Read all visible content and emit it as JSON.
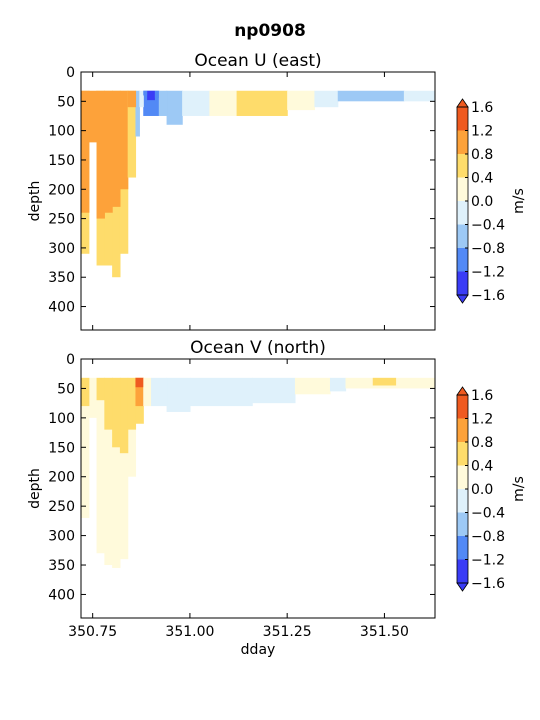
{
  "figure_title": "np0908",
  "levels": [
    -1.6,
    -1.2,
    -0.8,
    -0.4,
    0.0,
    0.4,
    0.8,
    1.2,
    1.6
  ],
  "level_labels": [
    "−1.6",
    "−1.2",
    "−0.8",
    "−0.4",
    "0.0",
    "0.4",
    "0.8",
    "1.2",
    "1.6"
  ],
  "level_colors": [
    "#3a3cf6",
    "#5289f5",
    "#9dc9f5",
    "#dff1fb",
    "#fffadb",
    "#fedc6b",
    "#fda23a",
    "#ef5a20"
  ],
  "colorbar_label": "m/s",
  "chart_data": [
    {
      "type": "heatmap",
      "title": "Ocean U (east)",
      "xlabel": "",
      "ylabel": "depth",
      "xlim": [
        350.72,
        351.63
      ],
      "ylim": [
        440,
        0
      ],
      "xticks": [
        350.75,
        351.0,
        351.25,
        351.5
      ],
      "xtick_labels": [
        "",
        "",
        "",
        ""
      ],
      "yticks": [
        0,
        50,
        100,
        150,
        200,
        250,
        300,
        350,
        400
      ],
      "ytick_labels": [
        "0",
        "50",
        "100",
        "150",
        "200",
        "250",
        "300",
        "350",
        "400"
      ],
      "cells": [
        {
          "x0": 350.72,
          "x1": 350.74,
          "y1": 240,
          "v": 0.9
        },
        {
          "x0": 350.72,
          "x1": 350.74,
          "y1": 310,
          "v": 0.6
        },
        {
          "x0": 350.74,
          "x1": 350.76,
          "y1": 120,
          "v": 0.9
        },
        {
          "x0": 350.76,
          "x1": 350.78,
          "y1": 250,
          "v": 0.9
        },
        {
          "x0": 350.76,
          "x1": 350.78,
          "y1": 330,
          "v": 0.6
        },
        {
          "x0": 350.78,
          "x1": 350.8,
          "y1": 240,
          "v": 0.9
        },
        {
          "x0": 350.78,
          "x1": 350.8,
          "y1": 330,
          "v": 0.6
        },
        {
          "x0": 350.8,
          "x1": 350.82,
          "y1": 230,
          "v": 0.9
        },
        {
          "x0": 350.8,
          "x1": 350.82,
          "y1": 350,
          "v": 0.6
        },
        {
          "x0": 350.82,
          "x1": 350.84,
          "y1": 200,
          "v": 0.9
        },
        {
          "x0": 350.82,
          "x1": 350.84,
          "y1": 310,
          "v": 0.6
        },
        {
          "x0": 350.84,
          "x1": 350.86,
          "y1": 60,
          "v": 0.9
        },
        {
          "x0": 350.84,
          "x1": 350.86,
          "y1": 180,
          "v": 0.6
        },
        {
          "x0": 350.86,
          "x1": 350.87,
          "y1": 110,
          "v": -0.6
        },
        {
          "x0": 350.87,
          "x1": 350.88,
          "y1": 60,
          "v": -0.2
        },
        {
          "x0": 350.88,
          "x1": 350.92,
          "y1": 75,
          "v": -1.0
        },
        {
          "x0": 350.92,
          "x1": 350.94,
          "y1": 75,
          "v": -0.6
        },
        {
          "x0": 350.94,
          "x1": 350.98,
          "y1": 90,
          "v": -0.6
        },
        {
          "x0": 350.98,
          "x1": 351.05,
          "y1": 75,
          "v": -0.2
        },
        {
          "x0": 351.05,
          "x1": 351.12,
          "y1": 75,
          "v": 0.2
        },
        {
          "x0": 351.12,
          "x1": 351.25,
          "y1": 75,
          "v": 0.6
        },
        {
          "x0": 351.25,
          "x1": 351.32,
          "y1": 65,
          "v": 0.2
        },
        {
          "x0": 351.32,
          "x1": 351.38,
          "y1": 60,
          "v": -0.2
        },
        {
          "x0": 351.38,
          "x1": 351.55,
          "y1": 50,
          "v": -0.6
        },
        {
          "x0": 351.55,
          "x1": 351.63,
          "y1": 50,
          "v": -0.2
        }
      ],
      "patches": [
        {
          "x0": 350.89,
          "x1": 350.91,
          "y0": 32,
          "y1": 48,
          "v": -1.4
        },
        {
          "x0": 350.88,
          "x1": 350.89,
          "y0": 32,
          "y1": 40,
          "v": -1.0
        },
        {
          "x0": 350.91,
          "x1": 350.92,
          "y0": 32,
          "y1": 44,
          "v": -1.0
        }
      ]
    },
    {
      "type": "heatmap",
      "title": "Ocean V (north)",
      "xlabel": "dday",
      "ylabel": "depth",
      "xlim": [
        350.72,
        351.63
      ],
      "ylim": [
        440,
        0
      ],
      "xticks": [
        350.75,
        351.0,
        351.25,
        351.5
      ],
      "xtick_labels": [
        "350.75",
        "351.00",
        "351.25",
        "351.50"
      ],
      "yticks": [
        0,
        50,
        100,
        150,
        200,
        250,
        300,
        350,
        400
      ],
      "ytick_labels": [
        "0",
        "50",
        "100",
        "150",
        "200",
        "250",
        "300",
        "350",
        "400"
      ],
      "cells": [
        {
          "x0": 350.72,
          "x1": 350.74,
          "y1": 80,
          "v": 0.6
        },
        {
          "x0": 350.72,
          "x1": 350.74,
          "y1": 270,
          "v": 0.2
        },
        {
          "x0": 350.74,
          "x1": 350.76,
          "y1": 100,
          "v": 0.2
        },
        {
          "x0": 350.76,
          "x1": 350.78,
          "y1": 70,
          "v": 0.6
        },
        {
          "x0": 350.76,
          "x1": 350.78,
          "y1": 330,
          "v": 0.2
        },
        {
          "x0": 350.78,
          "x1": 350.8,
          "y1": 120,
          "v": 0.6
        },
        {
          "x0": 350.78,
          "x1": 350.8,
          "y1": 350,
          "v": 0.2
        },
        {
          "x0": 350.8,
          "x1": 350.82,
          "y1": 150,
          "v": 0.6
        },
        {
          "x0": 350.8,
          "x1": 350.82,
          "y1": 355,
          "v": 0.2
        },
        {
          "x0": 350.82,
          "x1": 350.84,
          "y1": 160,
          "v": 0.6
        },
        {
          "x0": 350.82,
          "x1": 350.84,
          "y1": 340,
          "v": 0.2
        },
        {
          "x0": 350.84,
          "x1": 350.86,
          "y1": 120,
          "v": 0.6
        },
        {
          "x0": 350.84,
          "x1": 350.86,
          "y1": 200,
          "v": 0.2
        },
        {
          "x0": 350.86,
          "x1": 350.88,
          "y1": 80,
          "v": 1.0
        },
        {
          "x0": 350.86,
          "x1": 350.88,
          "y1": 110,
          "v": 0.6
        },
        {
          "x0": 350.88,
          "x1": 350.9,
          "y1": 80,
          "v": 0.2
        },
        {
          "x0": 350.9,
          "x1": 350.94,
          "y1": 80,
          "v": -0.2
        },
        {
          "x0": 350.94,
          "x1": 351.0,
          "y1": 90,
          "v": -0.2
        },
        {
          "x0": 351.0,
          "x1": 351.16,
          "y1": 80,
          "v": -0.2
        },
        {
          "x0": 351.16,
          "x1": 351.27,
          "y1": 75,
          "v": -0.2
        },
        {
          "x0": 351.27,
          "x1": 351.36,
          "y1": 60,
          "v": 0.2
        },
        {
          "x0": 351.36,
          "x1": 351.4,
          "y1": 55,
          "v": -0.2
        },
        {
          "x0": 351.4,
          "x1": 351.63,
          "y1": 50,
          "v": 0.2
        }
      ],
      "patches": [
        {
          "x0": 350.86,
          "x1": 350.88,
          "y0": 32,
          "y1": 48,
          "v": 1.4
        },
        {
          "x0": 351.47,
          "x1": 351.53,
          "y0": 32,
          "y1": 45,
          "v": 0.6
        }
      ]
    }
  ]
}
